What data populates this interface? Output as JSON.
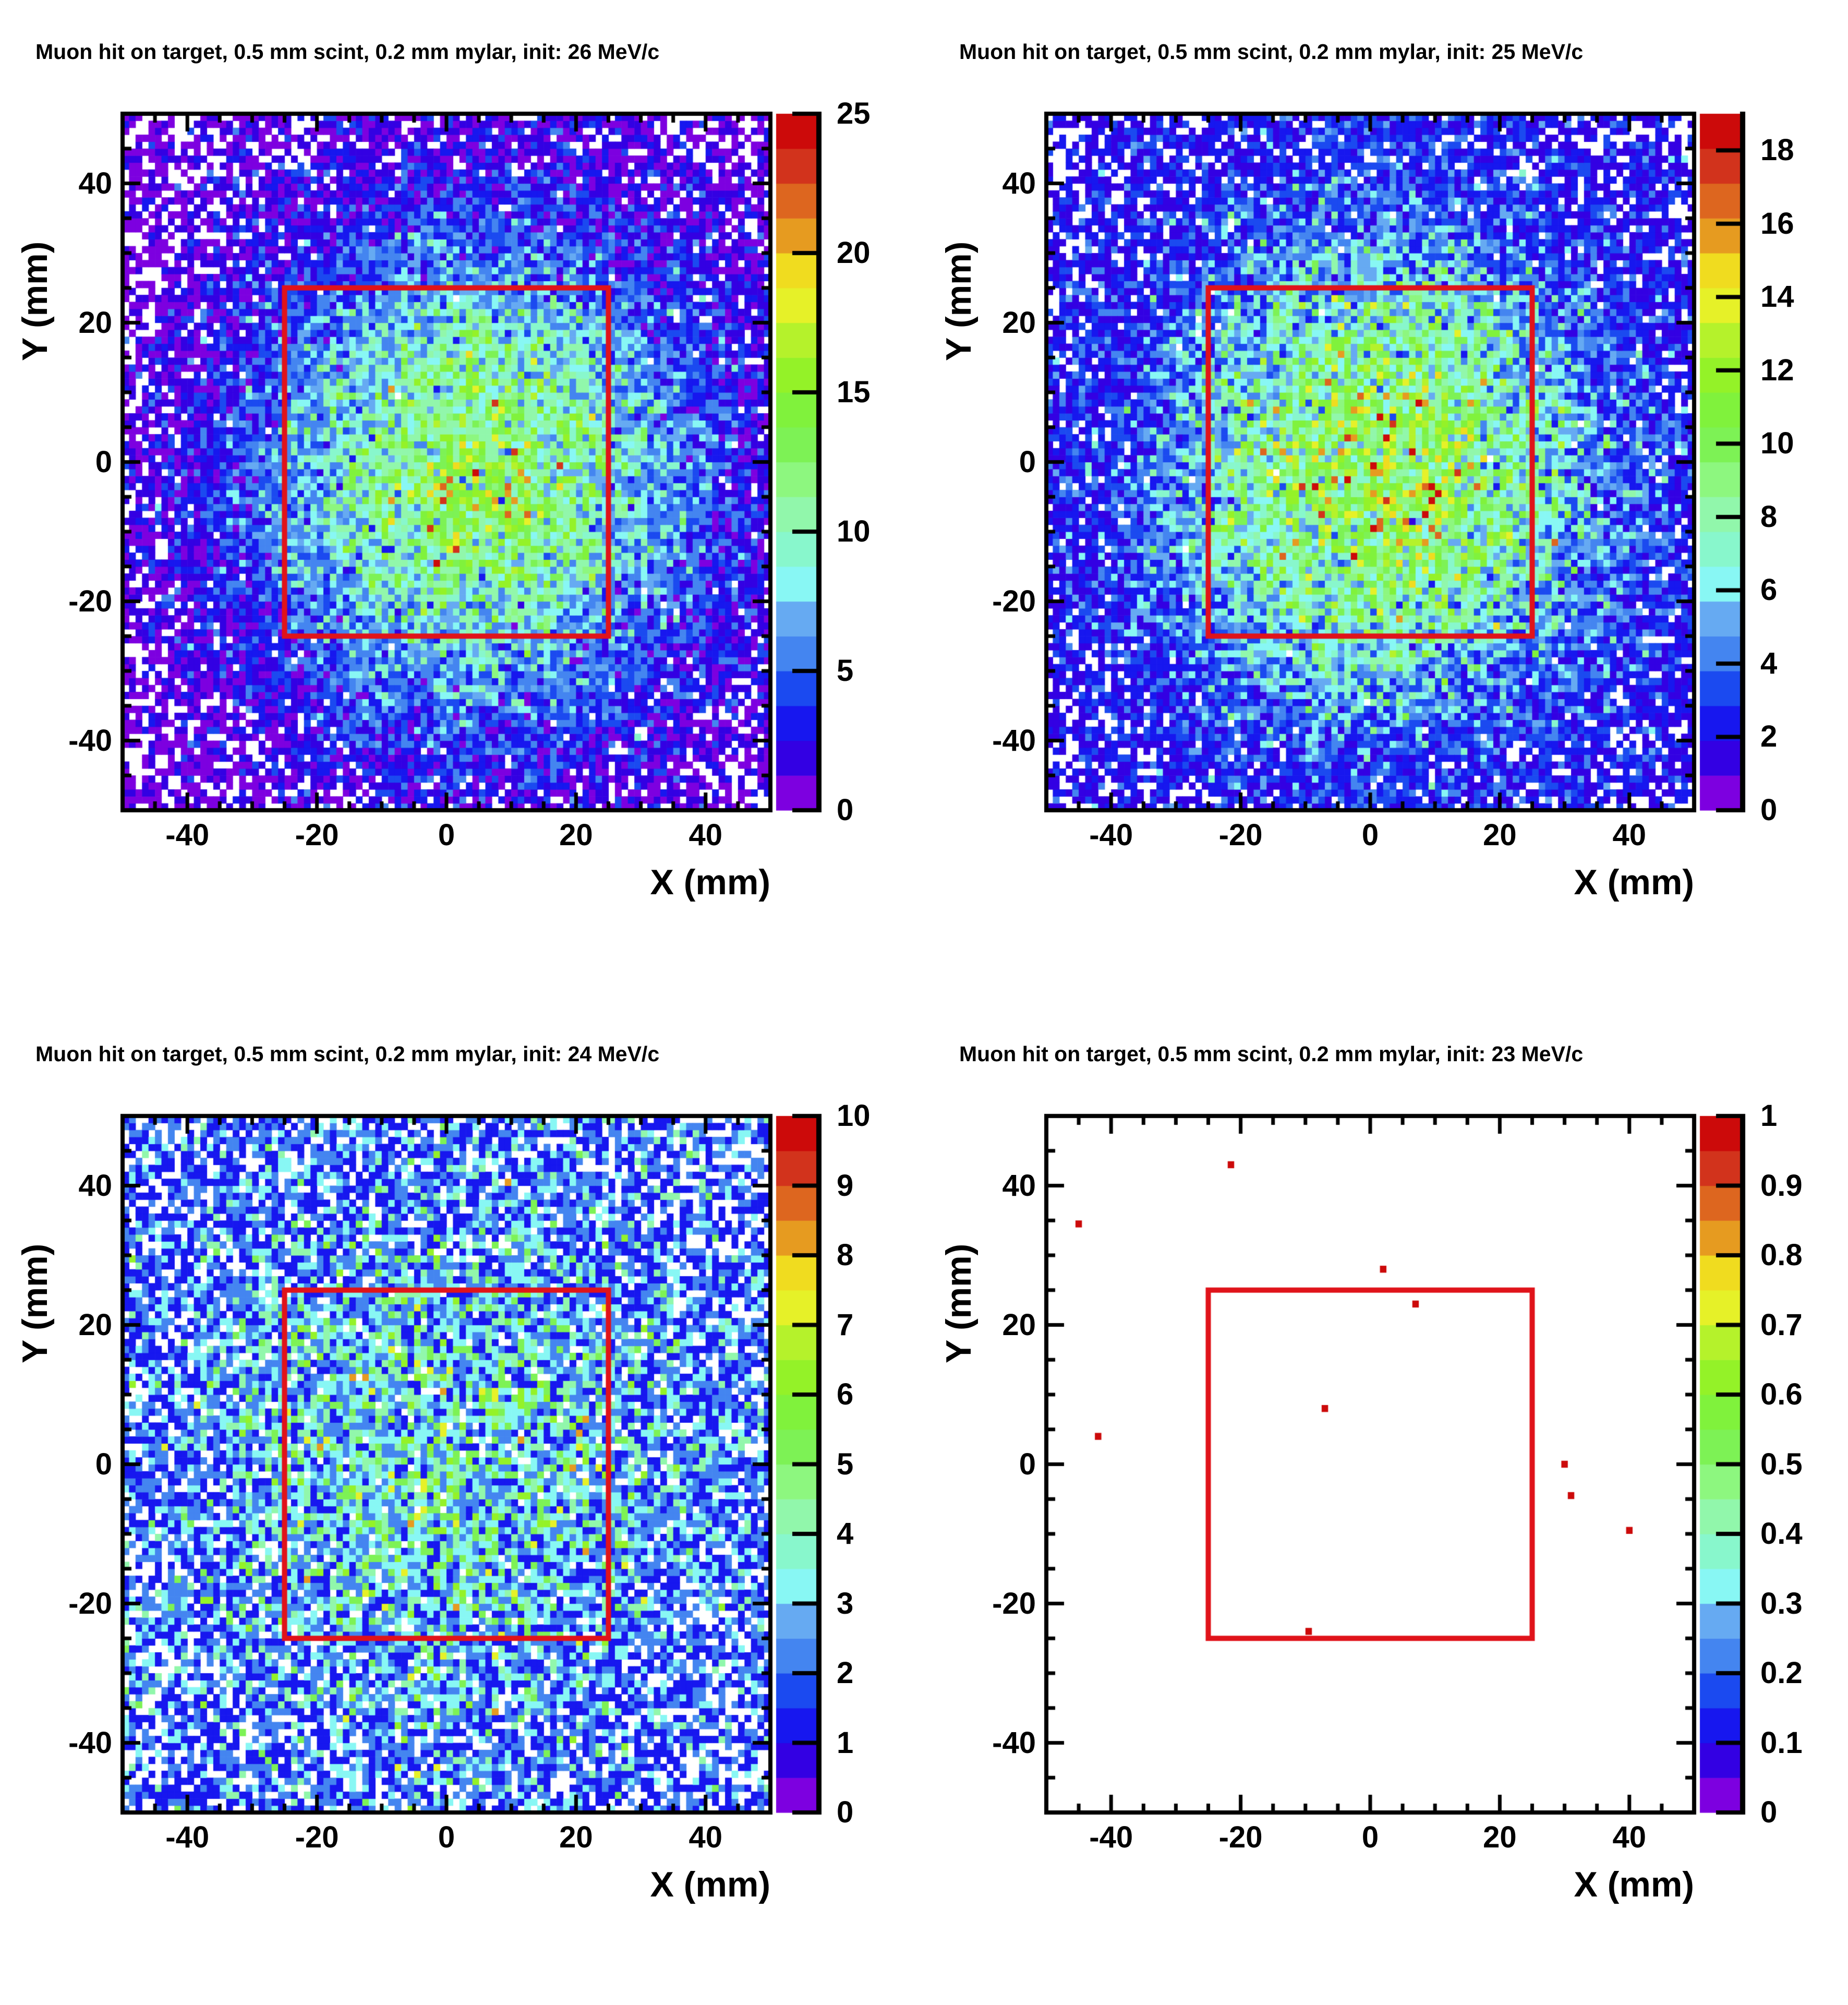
{
  "page": {
    "background": "#ffffff"
  },
  "palette": [
    "#7d00e0",
    "#3300e3",
    "#1717ef",
    "#1b4af0",
    "#4485f0",
    "#66aaf2",
    "#88f7f4",
    "#88f7cc",
    "#91f7ab",
    "#8df77f",
    "#7df255",
    "#80f23c",
    "#94f228",
    "#b5f22b",
    "#e6f128",
    "#f0dc1f",
    "#e69b20",
    "#dd661f",
    "#d2331c",
    "#cc0a0a"
  ],
  "colors": {
    "frame": "#000000",
    "fiducial_box": "#e0131a",
    "empty_bin": "#ffffff",
    "text": "#000000"
  },
  "chart_data": [
    {
      "type": "heatmap",
      "title": "Muon hit on target, 0.5 mm scint, 0.2 mm mylar, init: 26 MeV/c",
      "momentum": "26 MeV/c",
      "xlabel": "X (mm)",
      "ylabel": "Y (mm)",
      "x_range": [
        -50,
        50
      ],
      "y_range": [
        -50,
        50
      ],
      "bins": [
        100,
        100
      ],
      "x_ticks": [
        "-40",
        "-20",
        "0",
        "20",
        "40"
      ],
      "y_ticks": [
        "40",
        "20",
        "0",
        "-20",
        "-40"
      ],
      "minor_tick_step_mm": 5,
      "z_max": 25,
      "z_ticks": [
        "0",
        "5",
        "10",
        "15",
        "20",
        "25"
      ],
      "fiducial_box": {
        "x_min": -25,
        "x_max": 25,
        "y_min": -25,
        "y_max": 25
      },
      "distribution": {
        "kind": "gaussian-poisson-counts",
        "base_rate": 0.85,
        "peak_rate": 12.5,
        "sigma_mm": 22,
        "center_mm": [
          5,
          -2
        ],
        "seed": 11
      }
    },
    {
      "type": "heatmap",
      "title": "Muon hit on target, 0.5 mm scint, 0.2 mm mylar, init: 25 MeV/c",
      "momentum": "25 MeV/c",
      "xlabel": "X (mm)",
      "ylabel": "Y (mm)",
      "x_range": [
        -50,
        50
      ],
      "y_range": [
        -50,
        50
      ],
      "bins": [
        100,
        100
      ],
      "x_ticks": [
        "-40",
        "-20",
        "0",
        "20",
        "40"
      ],
      "y_ticks": [
        "40",
        "20",
        "0",
        "-20",
        "-40"
      ],
      "minor_tick_step_mm": 5,
      "z_max": 19,
      "z_ticks": [
        "0",
        "2",
        "4",
        "6",
        "8",
        "10",
        "12",
        "14",
        "16",
        "18"
      ],
      "fiducial_box": {
        "x_min": -25,
        "x_max": 25,
        "y_min": -25,
        "y_max": 25
      },
      "distribution": {
        "kind": "gaussian-poisson-counts",
        "base_rate": 0.9,
        "peak_rate": 10.2,
        "sigma_mm": 23,
        "center_mm": [
          2,
          -2
        ],
        "seed": 22
      }
    },
    {
      "type": "heatmap",
      "title": "Muon hit on target, 0.5 mm scint, 0.2 mm mylar, init: 24 MeV/c",
      "momentum": "24 MeV/c",
      "xlabel": "X (mm)",
      "ylabel": "Y (mm)",
      "x_range": [
        -50,
        50
      ],
      "y_range": [
        -50,
        50
      ],
      "bins": [
        100,
        100
      ],
      "x_ticks": [
        "-40",
        "-20",
        "0",
        "20",
        "40"
      ],
      "y_ticks": [
        "40",
        "20",
        "0",
        "-20",
        "-40"
      ],
      "minor_tick_step_mm": 5,
      "z_max": 10,
      "z_ticks": [
        "0",
        "1",
        "2",
        "3",
        "4",
        "5",
        "6",
        "7",
        "8",
        "9",
        "10"
      ],
      "fiducial_box": {
        "x_min": -25,
        "x_max": 25,
        "y_min": -25,
        "y_max": 25
      },
      "distribution": {
        "kind": "gaussian-poisson-counts",
        "base_rate": 0.95,
        "peak_rate": 2.3,
        "sigma_mm": 27,
        "center_mm": [
          0,
          0
        ],
        "seed": 33
      }
    },
    {
      "type": "scatter",
      "title": "Muon hit on target, 0.5 mm scint, 0.2 mm mylar, init: 23 MeV/c",
      "momentum": "23 MeV/c",
      "xlabel": "X (mm)",
      "ylabel": "Y (mm)",
      "x_range": [
        -50,
        50
      ],
      "y_range": [
        -50,
        50
      ],
      "bins": [
        100,
        100
      ],
      "x_ticks": [
        "-40",
        "-20",
        "0",
        "20",
        "40"
      ],
      "y_ticks": [
        "40",
        "20",
        "0",
        "-20",
        "-40"
      ],
      "minor_tick_step_mm": 5,
      "z_max": 1,
      "z_ticks": [
        "0",
        "0.1",
        "0.2",
        "0.3",
        "0.4",
        "0.5",
        "0.6",
        "0.7",
        "0.8",
        "0.9",
        "1"
      ],
      "fiducial_box": {
        "x_min": -25,
        "x_max": 25,
        "y_min": -25,
        "y_max": 25
      },
      "points": [
        {
          "x": -21.5,
          "y": 43,
          "value": 1
        },
        {
          "x": -45,
          "y": 34.5,
          "value": 1
        },
        {
          "x": 2,
          "y": 28,
          "value": 1
        },
        {
          "x": 7,
          "y": 23,
          "value": 1
        },
        {
          "x": -7,
          "y": 8,
          "value": 1
        },
        {
          "x": -42,
          "y": 4,
          "value": 1
        },
        {
          "x": 30,
          "y": 0,
          "value": 1
        },
        {
          "x": 31,
          "y": -4.5,
          "value": 1
        },
        {
          "x": 40,
          "y": -9.5,
          "value": 1
        },
        {
          "x": -9.5,
          "y": -24,
          "value": 1
        }
      ]
    }
  ]
}
